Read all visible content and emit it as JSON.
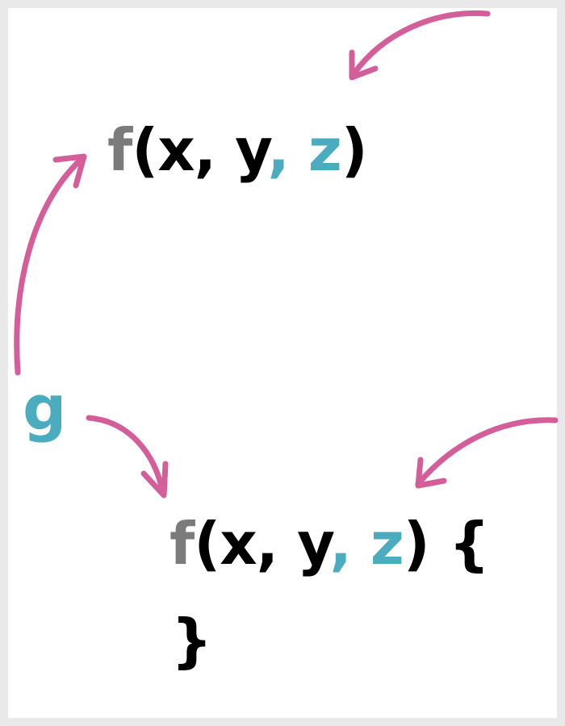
{
  "colors": {
    "background": "#e9e9ea",
    "canvas": "#ffffff",
    "arrow": "#d45e9a",
    "function_name": "#7b7b7b",
    "highlight": "#4aacbe",
    "text": "#000000"
  },
  "top_signature": {
    "name": "f",
    "params": "(x, y",
    "extra_param": ", z",
    "close": ")"
  },
  "bottom_signature": {
    "name": "f",
    "params": "(x, y",
    "extra_param": ", z",
    "close": ") {",
    "close_brace": "}"
  },
  "g_label": "g"
}
